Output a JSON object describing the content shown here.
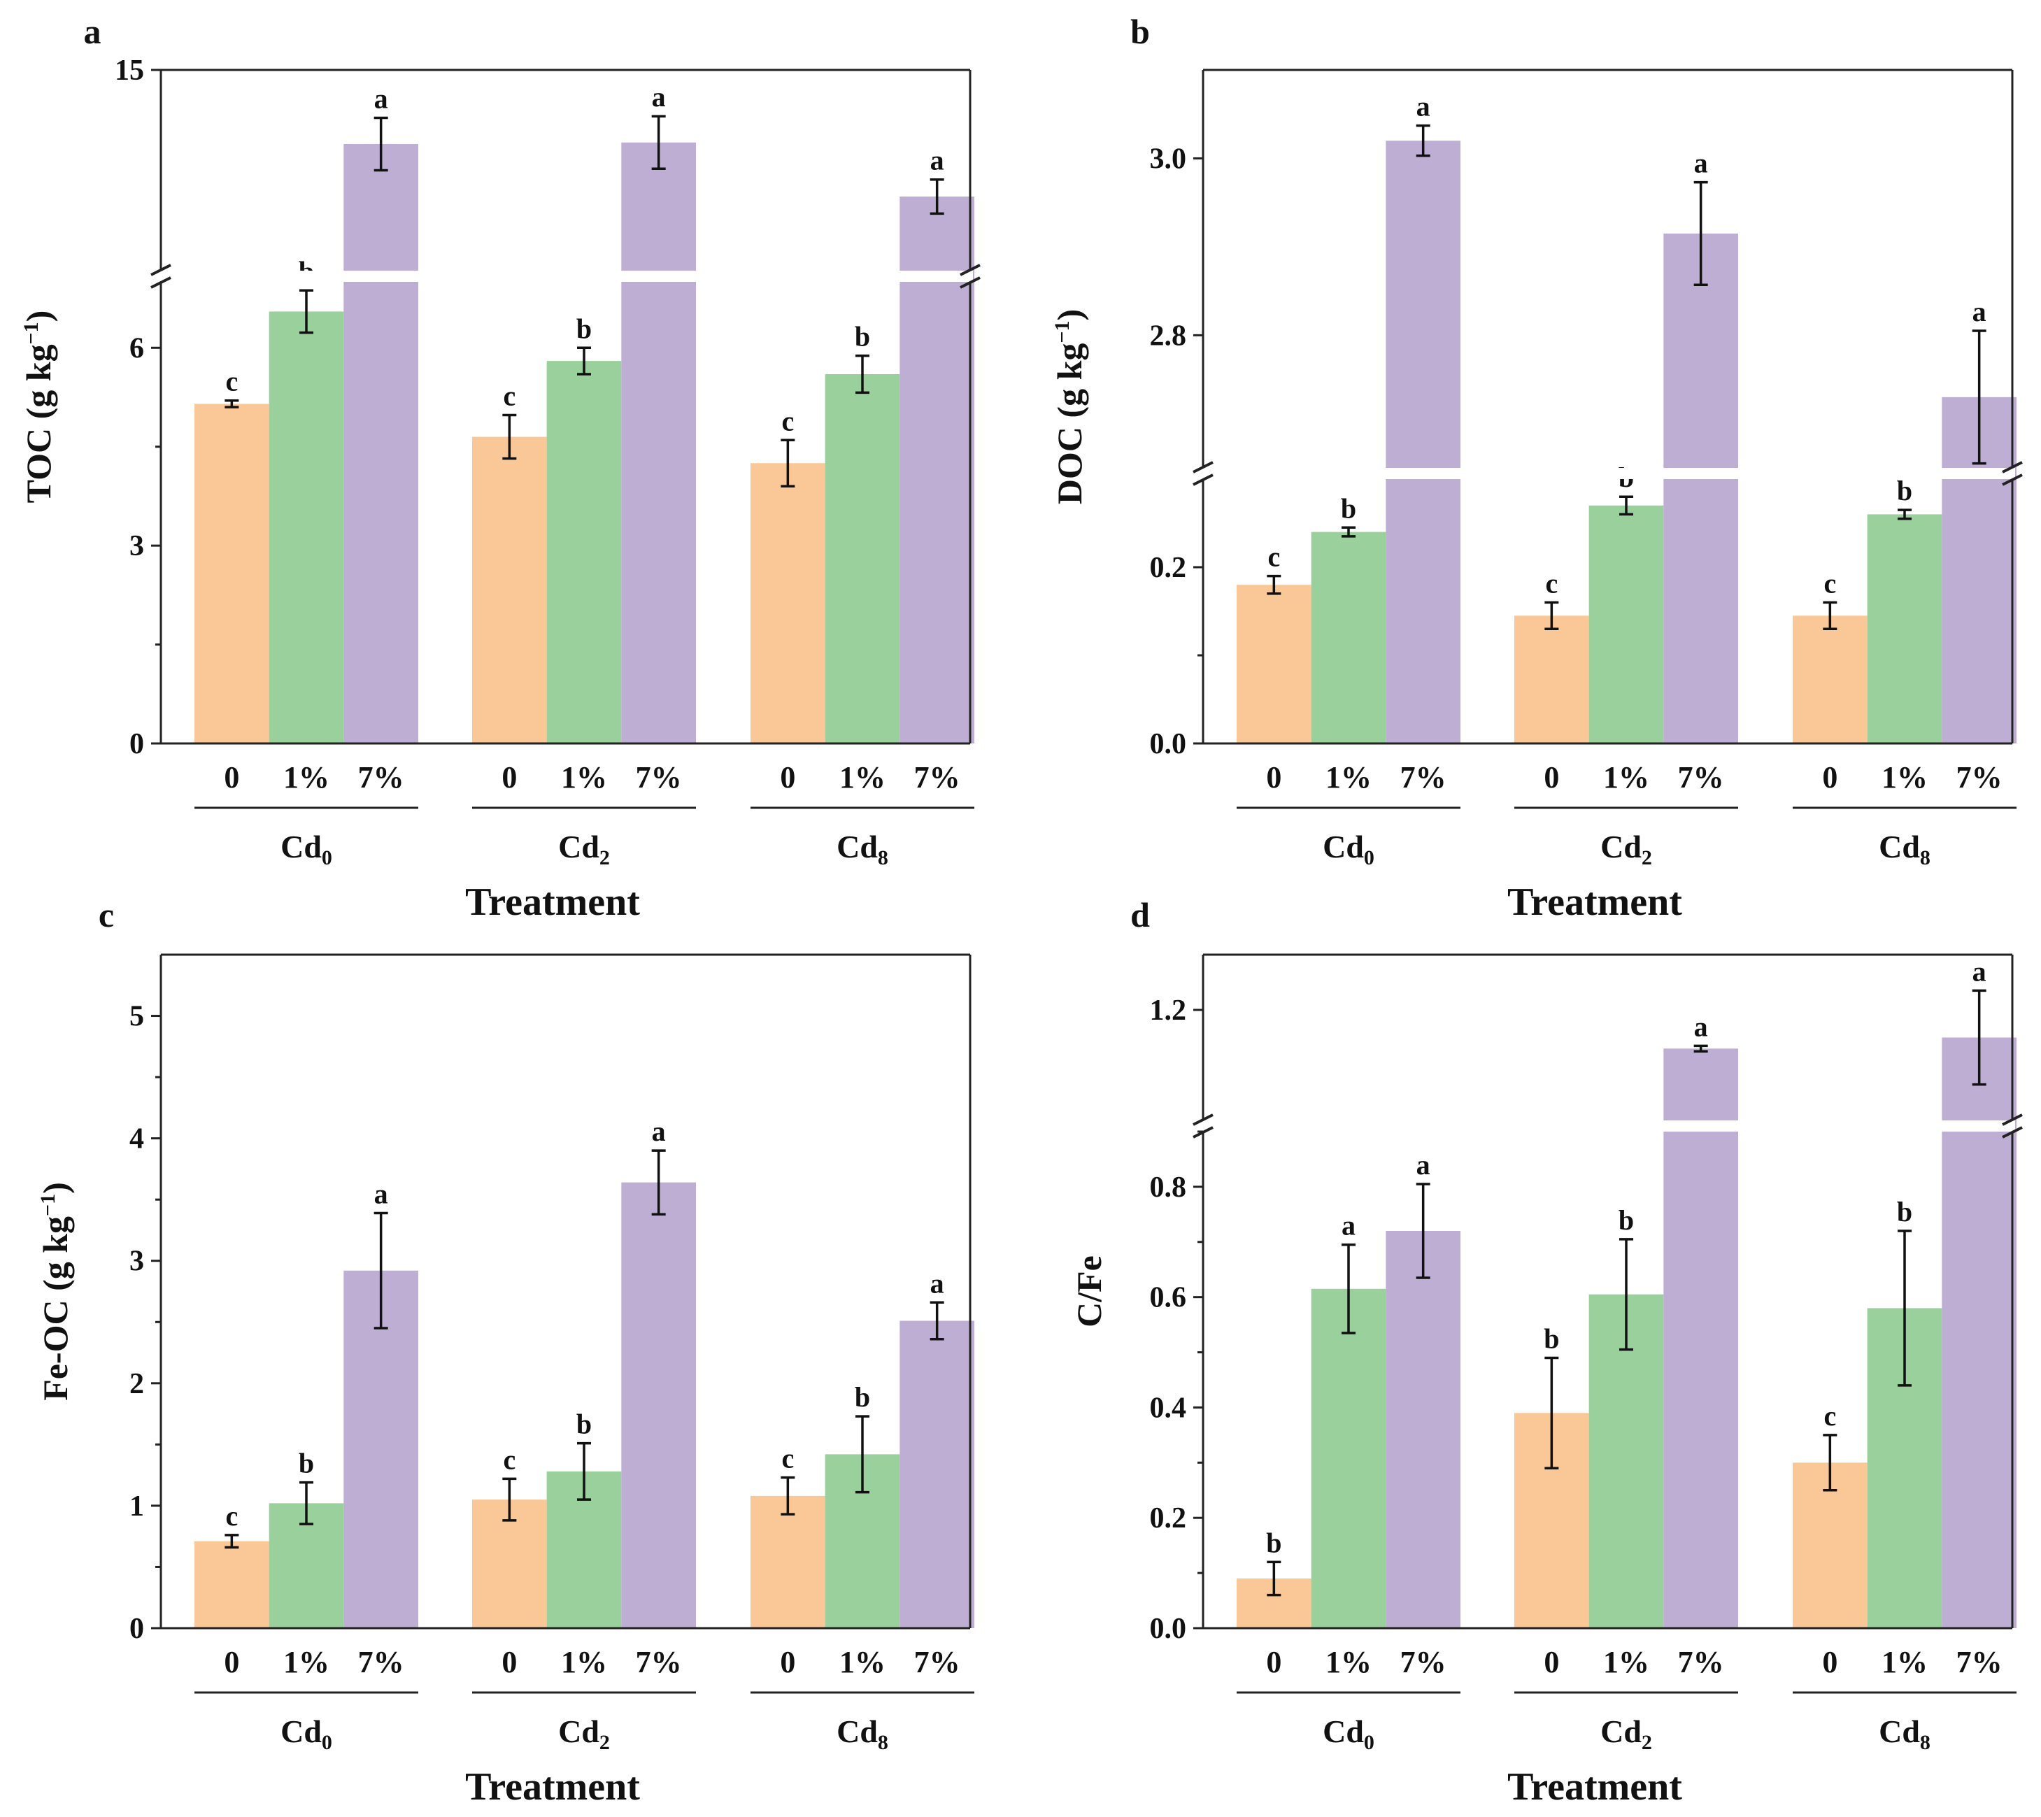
{
  "colors": {
    "bar_0": "#f9c896",
    "bar_1pct": "#99d09b",
    "bar_7pct": "#bfaed4",
    "axis": "#222222",
    "break_gap": "#ffffff"
  },
  "chart_data": [
    {
      "panel": "a",
      "type": "bar",
      "ylabel": "TOC (g kg",
      "ylabel_sup": "−1",
      "ylabel_close": ")",
      "xlabel": "Treatment",
      "groups": [
        {
          "label": "Cd",
          "sub": "0"
        },
        {
          "label": "Cd",
          "sub": "2"
        },
        {
          "label": "Cd",
          "sub": "8"
        }
      ],
      "categories": [
        "0",
        "1%",
        "7%"
      ],
      "axis_break": {
        "lower": [
          0,
          7
        ],
        "upper": [
          8.5,
          15
        ]
      },
      "ticks": [
        {
          "value": 0,
          "label": "0"
        },
        {
          "value": 3,
          "label": "3"
        },
        {
          "value": 6,
          "label": "6"
        },
        {
          "value": 15,
          "label": "15"
        }
      ],
      "series": [
        {
          "name": "0",
          "values": [
            5.15,
            4.65,
            4.25
          ],
          "errors": [
            0.05,
            0.33,
            0.35
          ],
          "labels": [
            "c",
            "c",
            "c"
          ]
        },
        {
          "name": "1%",
          "values": [
            6.55,
            5.8,
            5.6
          ],
          "errors": [
            0.32,
            0.2,
            0.28
          ],
          "labels": [
            "b",
            "b",
            "b"
          ]
        },
        {
          "name": "7%",
          "values": [
            12.6,
            12.65,
            10.9
          ],
          "errors": [
            0.85,
            0.85,
            0.55
          ],
          "labels": [
            "a",
            "a",
            "a"
          ]
        }
      ]
    },
    {
      "panel": "b",
      "type": "bar",
      "ylabel": "DOC (g kg",
      "ylabel_sup": "−1",
      "ylabel_close": ")",
      "xlabel": "Treatment",
      "groups": [
        {
          "label": "Cd",
          "sub": "0"
        },
        {
          "label": "Cd",
          "sub": "2"
        },
        {
          "label": "Cd",
          "sub": "8"
        }
      ],
      "categories": [
        "0",
        "1%",
        "7%"
      ],
      "axis_break": {
        "lower": [
          0,
          0.3
        ],
        "upper": [
          2.65,
          3.1
        ]
      },
      "ticks": [
        {
          "value": 0.0,
          "label": "0.0"
        },
        {
          "value": 0.2,
          "label": "0.2"
        },
        {
          "value": 2.8,
          "label": "2.8"
        },
        {
          "value": 3.0,
          "label": "3.0"
        }
      ],
      "series": [
        {
          "name": "0",
          "values": [
            0.18,
            0.145,
            0.145
          ],
          "errors": [
            0.01,
            0.015,
            0.015
          ],
          "labels": [
            "c",
            "c",
            "c"
          ]
        },
        {
          "name": "1%",
          "values": [
            0.24,
            0.27,
            0.26
          ],
          "errors": [
            0.005,
            0.01,
            0.005
          ],
          "labels": [
            "b",
            "b",
            "b"
          ]
        },
        {
          "name": "7%",
          "values": [
            3.02,
            2.915,
            2.73
          ],
          "errors": [
            0.017,
            0.058,
            0.075
          ],
          "labels": [
            "a",
            "a",
            "a"
          ]
        }
      ]
    },
    {
      "panel": "c",
      "type": "bar",
      "ylabel": "Fe-OC (g kg",
      "ylabel_sup": "−1",
      "ylabel_close": ")",
      "xlabel": "Treatment",
      "groups": [
        {
          "label": "Cd",
          "sub": "0"
        },
        {
          "label": "Cd",
          "sub": "2"
        },
        {
          "label": "Cd",
          "sub": "8"
        }
      ],
      "categories": [
        "0",
        "1%",
        "7%"
      ],
      "axis_break": null,
      "ticks": [
        {
          "value": 0,
          "label": "0"
        },
        {
          "value": 1,
          "label": "1"
        },
        {
          "value": 2,
          "label": "2"
        },
        {
          "value": 3,
          "label": "3"
        },
        {
          "value": 4,
          "label": "4"
        },
        {
          "value": 5,
          "label": "5"
        }
      ],
      "ylim": [
        0,
        5.5
      ],
      "series": [
        {
          "name": "0",
          "values": [
            0.71,
            1.05,
            1.08
          ],
          "errors": [
            0.05,
            0.17,
            0.15
          ],
          "labels": [
            "c",
            "c",
            "c"
          ]
        },
        {
          "name": "1%",
          "values": [
            1.02,
            1.28,
            1.42
          ],
          "errors": [
            0.17,
            0.23,
            0.31
          ],
          "labels": [
            "b",
            "b",
            "b"
          ]
        },
        {
          "name": "7%",
          "values": [
            2.92,
            3.64,
            2.51
          ],
          "errors": [
            0.47,
            0.26,
            0.15
          ],
          "labels": [
            "a",
            "a",
            "a"
          ]
        }
      ]
    },
    {
      "panel": "d",
      "type": "bar",
      "ylabel": "C/Fe",
      "ylabel_sup": "",
      "ylabel_close": "",
      "xlabel": "Treatment",
      "groups": [
        {
          "label": "Cd",
          "sub": "0"
        },
        {
          "label": "Cd",
          "sub": "2"
        },
        {
          "label": "Cd",
          "sub": "8"
        }
      ],
      "categories": [
        "0",
        "1%",
        "7%"
      ],
      "axis_break": {
        "lower": [
          0,
          0.9
        ],
        "upper": [
          1.0,
          1.3
        ]
      },
      "ticks": [
        {
          "value": 0.0,
          "label": "0.0"
        },
        {
          "value": 0.2,
          "label": "0.2"
        },
        {
          "value": 0.4,
          "label": "0.4"
        },
        {
          "value": 0.6,
          "label": "0.6"
        },
        {
          "value": 0.8,
          "label": "0.8"
        },
        {
          "value": 1.2,
          "label": "1.2"
        }
      ],
      "series": [
        {
          "name": "0",
          "values": [
            0.09,
            0.39,
            0.3
          ],
          "errors": [
            0.03,
            0.1,
            0.05
          ],
          "labels": [
            "b",
            "b",
            "c"
          ]
        },
        {
          "name": "1%",
          "values": [
            0.615,
            0.605,
            0.58
          ],
          "errors": [
            0.08,
            0.1,
            0.14
          ],
          "labels": [
            "a",
            "b",
            "b"
          ]
        },
        {
          "name": "7%",
          "values": [
            0.72,
            1.13,
            1.15
          ],
          "errors": [
            0.085,
            0.005,
            0.085
          ],
          "labels": [
            "a",
            "a",
            "a"
          ]
        }
      ]
    }
  ]
}
